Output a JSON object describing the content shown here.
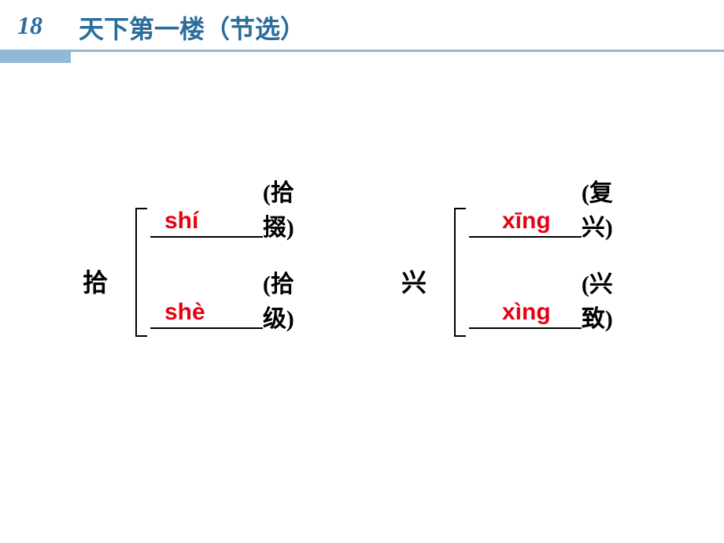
{
  "header": {
    "lesson_number": "18",
    "title": "天下第一楼（节选）",
    "title_color": "#2a6d9d",
    "bar_color": "#8fb9d6"
  },
  "groups": [
    {
      "character": "拾",
      "rows": [
        {
          "pinyin": "shí",
          "word": "(拾掇)",
          "pinyin_color": "#e60012"
        },
        {
          "pinyin": "shè",
          "word": "(拾级)",
          "pinyin_color": "#e60012"
        }
      ]
    },
    {
      "character": "兴",
      "rows": [
        {
          "pinyin": "xīng",
          "word": "(复兴)",
          "pinyin_color": "#e60012"
        },
        {
          "pinyin": "xìng",
          "word": "(兴致)",
          "pinyin_color": "#e60012"
        }
      ]
    }
  ],
  "styling": {
    "slide_width": 920,
    "slide_height": 690,
    "background_color": "#ffffff",
    "underline_color": "#000000",
    "character_fontsize": 32,
    "pinyin_fontsize": 30,
    "word_fontsize": 30
  }
}
